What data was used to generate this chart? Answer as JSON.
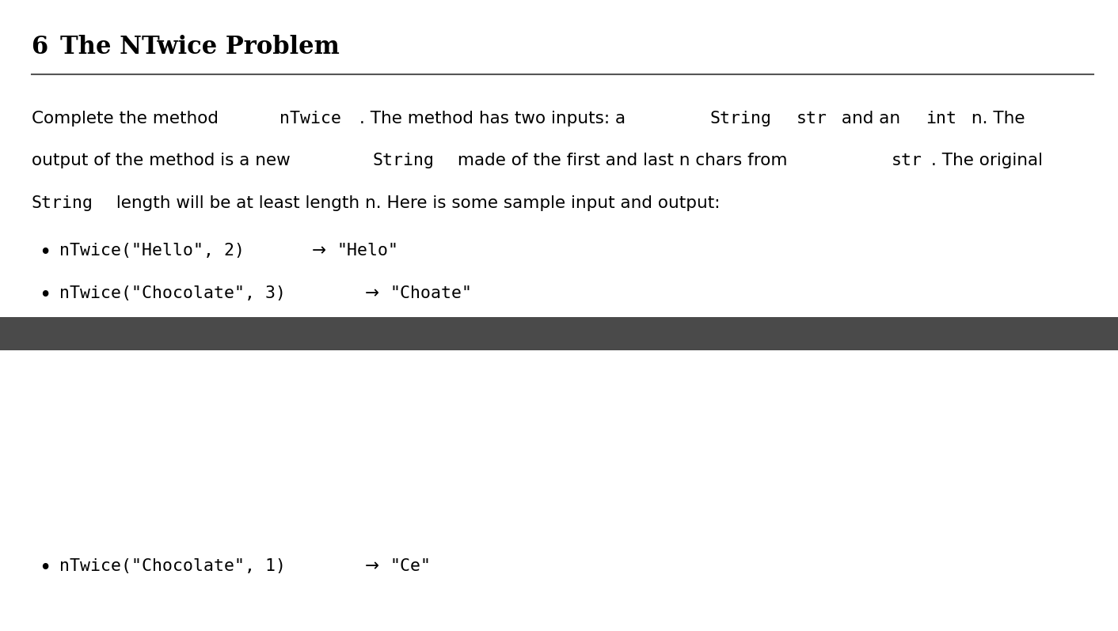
{
  "title_num": "6  ",
  "title_text": "The NTwice Problem",
  "title_fontsize": 22,
  "background_color": "#ffffff",
  "separator_color": "#555555",
  "dark_bar_color": "#4a4a4a",
  "paragraph_fontsize": 15.5,
  "bullet_fontsize": 15.5,
  "line1_parts": [
    [
      "Complete the method ",
      false
    ],
    [
      "nTwice",
      true
    ],
    [
      ". The method has two inputs: a ",
      false
    ],
    [
      "String",
      true
    ],
    [
      " ",
      false
    ],
    [
      "str",
      true
    ],
    [
      " and an ",
      false
    ],
    [
      "int",
      true
    ],
    [
      " n. The",
      false
    ]
  ],
  "line2_parts": [
    [
      "output of the method is a new ",
      false
    ],
    [
      "String",
      true
    ],
    [
      " made of the first and last n chars from ",
      false
    ],
    [
      "str",
      true
    ],
    [
      ". The original",
      false
    ]
  ],
  "line3_parts": [
    [
      "String",
      true
    ],
    [
      " length will be at least length n. Here is some sample input and output:",
      false
    ]
  ],
  "bullet1_parts": [
    [
      "nTwice(\"Hello\", 2) ",
      true
    ],
    [
      "→ ",
      false
    ],
    [
      "\"Helo\"",
      true
    ]
  ],
  "bullet2_parts": [
    [
      "nTwice(\"Chocolate\", 3) ",
      true
    ],
    [
      "→ ",
      false
    ],
    [
      "\"Choate\"",
      true
    ]
  ],
  "bullet3_parts": [
    [
      "nTwice(\"Chocolate\", 1) ",
      true
    ],
    [
      "→ ",
      false
    ],
    [
      "\"Ce\"",
      true
    ]
  ]
}
